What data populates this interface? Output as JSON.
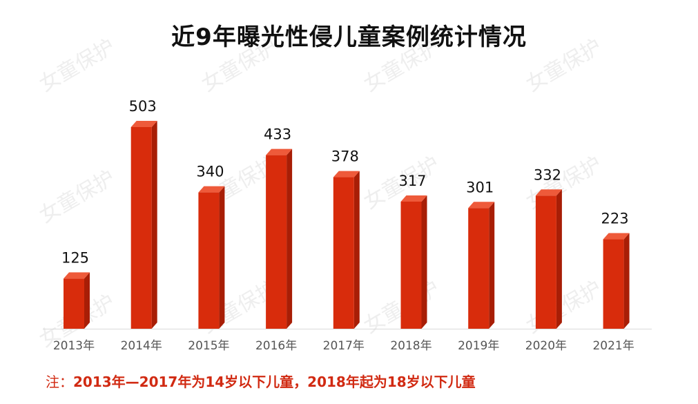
{
  "watermark": "女童保护",
  "footnote": {
    "prefix": "注：",
    "text": "2013年—2017年为14岁以下儿童，2018年起为18岁以下儿童"
  },
  "chart_data": {
    "type": "bar",
    "title": "近9年曝光性侵儿童案例统计情况",
    "xlabel": "",
    "ylabel": "",
    "categories": [
      "2013年",
      "2014年",
      "2015年",
      "2016年",
      "2017年",
      "2018年",
      "2019年",
      "2020年",
      "2021年"
    ],
    "values": [
      125,
      503,
      340,
      433,
      378,
      317,
      301,
      332,
      223
    ],
    "ylim": [
      0,
      503
    ],
    "grid": false,
    "legend": "none",
    "data_labels": true,
    "bar_color": "#d82c0c",
    "bar_side_color": "#a81e06",
    "bar_top_color": "#ee5a3a"
  }
}
